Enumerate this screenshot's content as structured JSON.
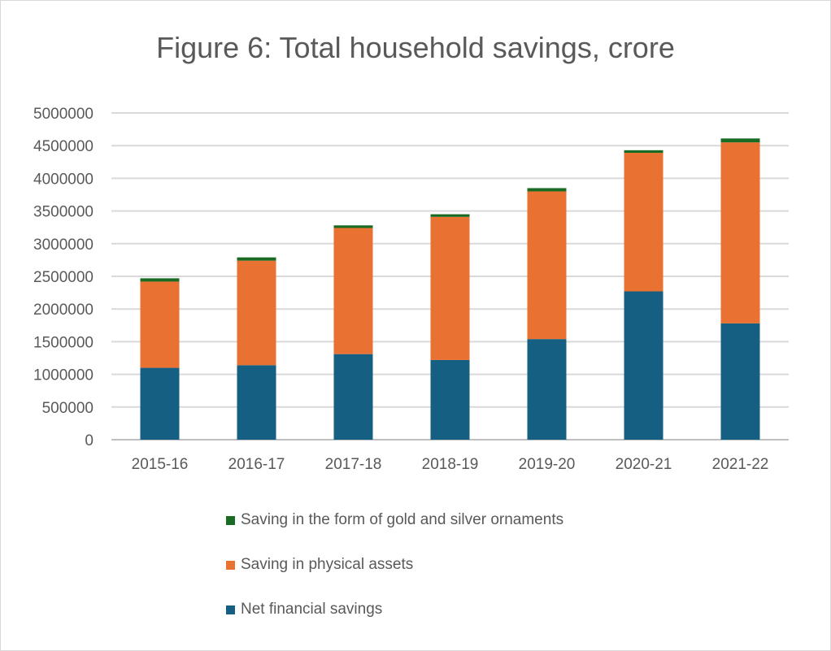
{
  "chart_data": {
    "type": "bar",
    "stacked": true,
    "title": "Figure 6: Total household savings, crore",
    "xlabel": "",
    "ylabel": "",
    "categories": [
      "2015-16",
      "2016-17",
      "2017-18",
      "2018-19",
      "2019-20",
      "2020-21",
      "2021-22"
    ],
    "series": [
      {
        "name": "Net financial savings",
        "color": "#156082",
        "values": [
          1100000,
          1140000,
          1310000,
          1220000,
          1540000,
          2270000,
          1780000
        ]
      },
      {
        "name": "Saving in physical assets",
        "color": "#E97132",
        "values": [
          1320000,
          1600000,
          1930000,
          2190000,
          2260000,
          2120000,
          2770000
        ]
      },
      {
        "name": "Saving in the form of gold and silver ornaments",
        "color": "#196B24",
        "values": [
          50000,
          50000,
          40000,
          40000,
          50000,
          40000,
          60000
        ]
      }
    ],
    "ylim": [
      0,
      5000000
    ],
    "yticks": [
      0,
      500000,
      1000000,
      1500000,
      2000000,
      2500000,
      3000000,
      3500000,
      4000000,
      4500000,
      5000000
    ],
    "grid": true,
    "legend_position": "bottom",
    "legend_order": [
      2,
      1,
      0
    ]
  }
}
